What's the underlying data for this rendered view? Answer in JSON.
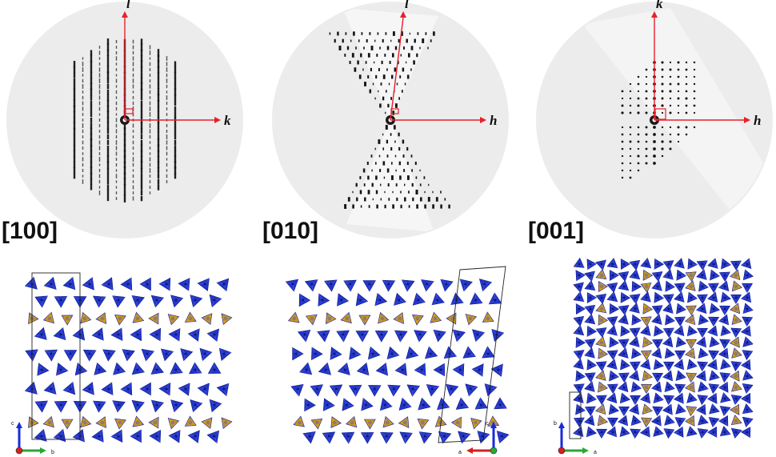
{
  "figure": {
    "panels": [
      {
        "zone": "[100]",
        "horizontal_axis": "k",
        "vertical_axis": "l",
        "pattern": "rods"
      },
      {
        "zone": "[010]",
        "horizontal_axis": "h",
        "vertical_axis": "l",
        "pattern": "hourglass"
      },
      {
        "zone": "[001]",
        "horizontal_axis": "h",
        "vertical_axis": "k",
        "pattern": "sparse"
      }
    ],
    "structures": [
      {
        "view": "along-a",
        "triad": {
          "up": "c",
          "right": "b"
        },
        "pattern": "framework"
      },
      {
        "view": "along-b",
        "triad": {
          "up": "c",
          "left": "a"
        },
        "pattern": "framework-skewed"
      },
      {
        "view": "along-c",
        "triad": {
          "up": "b",
          "right": "a"
        },
        "pattern": "dense-grid"
      }
    ]
  },
  "colors": {
    "disc": "#ececec",
    "spot": "#141414",
    "axis_red": "#e8202a",
    "tetra_blue": "#2436c8",
    "tetra_dark": "#0f1c8c",
    "tetra_gold": "#d69a1c",
    "triad_blue": "#1a2bd6",
    "triad_green": "#28a838",
    "triad_red": "#d42020"
  },
  "icons": [
    "diffraction-pattern-icon",
    "polyhedra-icon",
    "axis-triad-icon"
  ]
}
